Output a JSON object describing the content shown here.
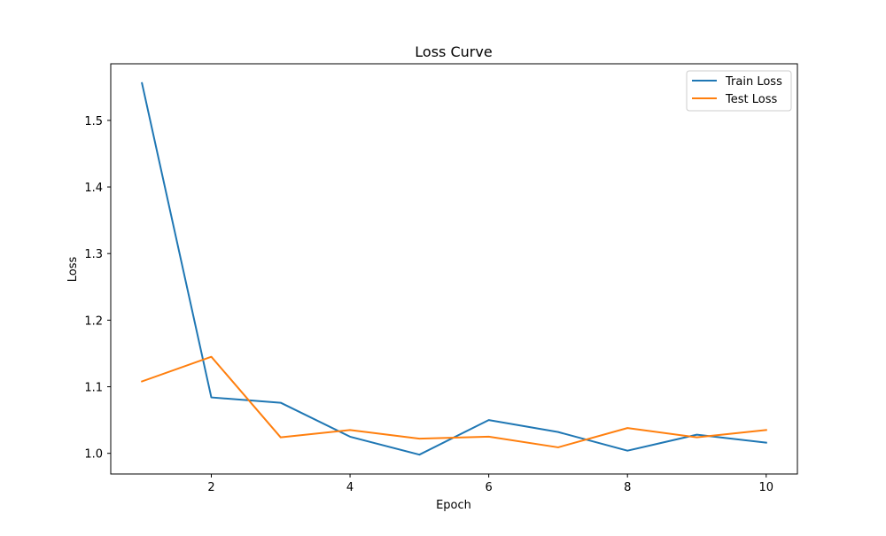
{
  "chart_data": {
    "type": "line",
    "title": "Loss Curve",
    "xlabel": "Epoch",
    "ylabel": "Loss",
    "xlim": [
      0.55,
      10.45
    ],
    "ylim": [
      0.969,
      1.585
    ],
    "x": [
      1,
      2,
      3,
      4,
      5,
      6,
      7,
      8,
      9,
      10
    ],
    "x_ticks": [
      2,
      4,
      6,
      8,
      10
    ],
    "y_ticks": [
      1.0,
      1.1,
      1.2,
      1.3,
      1.4,
      1.5
    ],
    "x_tick_labels": [
      "2",
      "4",
      "6",
      "8",
      "10"
    ],
    "y_tick_labels": [
      "1.0",
      "1.1",
      "1.2",
      "1.3",
      "1.4",
      "1.5"
    ],
    "grid": false,
    "legend_position": "top-right",
    "series": [
      {
        "name": "Train Loss",
        "color": "#1f77b4",
        "values": [
          1.556,
          1.084,
          1.076,
          1.025,
          0.998,
          1.05,
          1.032,
          1.004,
          1.028,
          1.016
        ]
      },
      {
        "name": "Test Loss",
        "color": "#ff7f0e",
        "values": [
          1.108,
          1.145,
          1.024,
          1.035,
          1.022,
          1.025,
          1.009,
          1.038,
          1.024,
          1.035
        ]
      }
    ]
  }
}
